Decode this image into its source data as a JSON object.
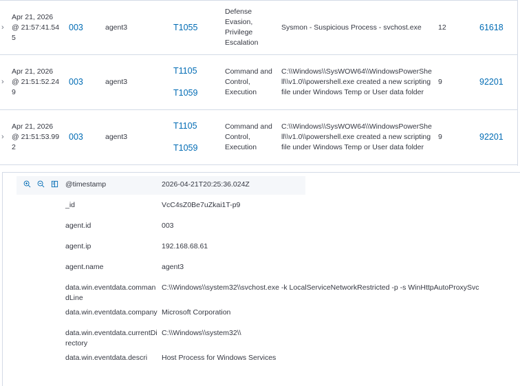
{
  "table": {
    "rows": [
      {
        "timestamp": "Apr 21, 2026 @ 21:57:41.545",
        "agent_id": "003",
        "agent_name": "agent3",
        "mitre_ids": [
          "T1055"
        ],
        "tactics": "Defense Evasion, Privilege Escalation",
        "description": "Sysmon - Suspicious Process - svchost.exe",
        "level": "12",
        "rule_id": "61618"
      },
      {
        "timestamp": "Apr 21, 2026 @ 21:51:52.249",
        "agent_id": "003",
        "agent_name": "agent3",
        "mitre_ids": [
          "T1105",
          "T1059"
        ],
        "tactics": "Command and Control, Execution",
        "description": "C:\\\\Windows\\\\SysWOW64\\\\WindowsPowerShell\\\\v1.0\\\\powershell.exe created a new scripting file under Windows Temp or User data folder",
        "level": "9",
        "rule_id": "92201"
      },
      {
        "timestamp": "Apr 21, 2026 @ 21:51:53.992",
        "agent_id": "003",
        "agent_name": "agent3",
        "mitre_ids": [
          "T1105",
          "T1059"
        ],
        "tactics": "Command and Control, Execution",
        "description": "C:\\\\Windows\\\\SysWOW64\\\\WindowsPowerShell\\\\v1.0\\\\powershell.exe created a new scripting file under Windows Temp or User data folder",
        "level": "9",
        "rule_id": "92201"
      }
    ]
  },
  "detail": {
    "fields": [
      {
        "name": "@timestamp",
        "value": "2026-04-21T20:25:36.024Z"
      },
      {
        "name": "_id",
        "value": "VcC4sZ0Be7uZkai1T-p9"
      },
      {
        "name": "agent.id",
        "value": "003"
      },
      {
        "name": "agent.ip",
        "value": "192.168.68.61"
      },
      {
        "name": "agent.name",
        "value": "agent3"
      },
      {
        "name": "data.win.eventdata.commandLine",
        "value": "C:\\\\Windows\\\\system32\\\\svchost.exe -k LocalServiceNetworkRestricted -p -s WinHttpAutoProxySvc"
      },
      {
        "name": "data.win.eventdata.company",
        "value": "Microsoft Corporation"
      },
      {
        "name": "data.win.eventdata.currentDirectory",
        "value": "C:\\\\Windows\\\\system32\\\\"
      },
      {
        "name": "data.win.eventdata.descri",
        "value": "Host Process for Windows Services"
      }
    ],
    "icons": [
      "zoom-in-icon",
      "zoom-out-icon",
      "toggle-column-icon"
    ]
  },
  "colors": {
    "link": "#006bb4",
    "border": "#d3dae6",
    "text": "#343741"
  }
}
